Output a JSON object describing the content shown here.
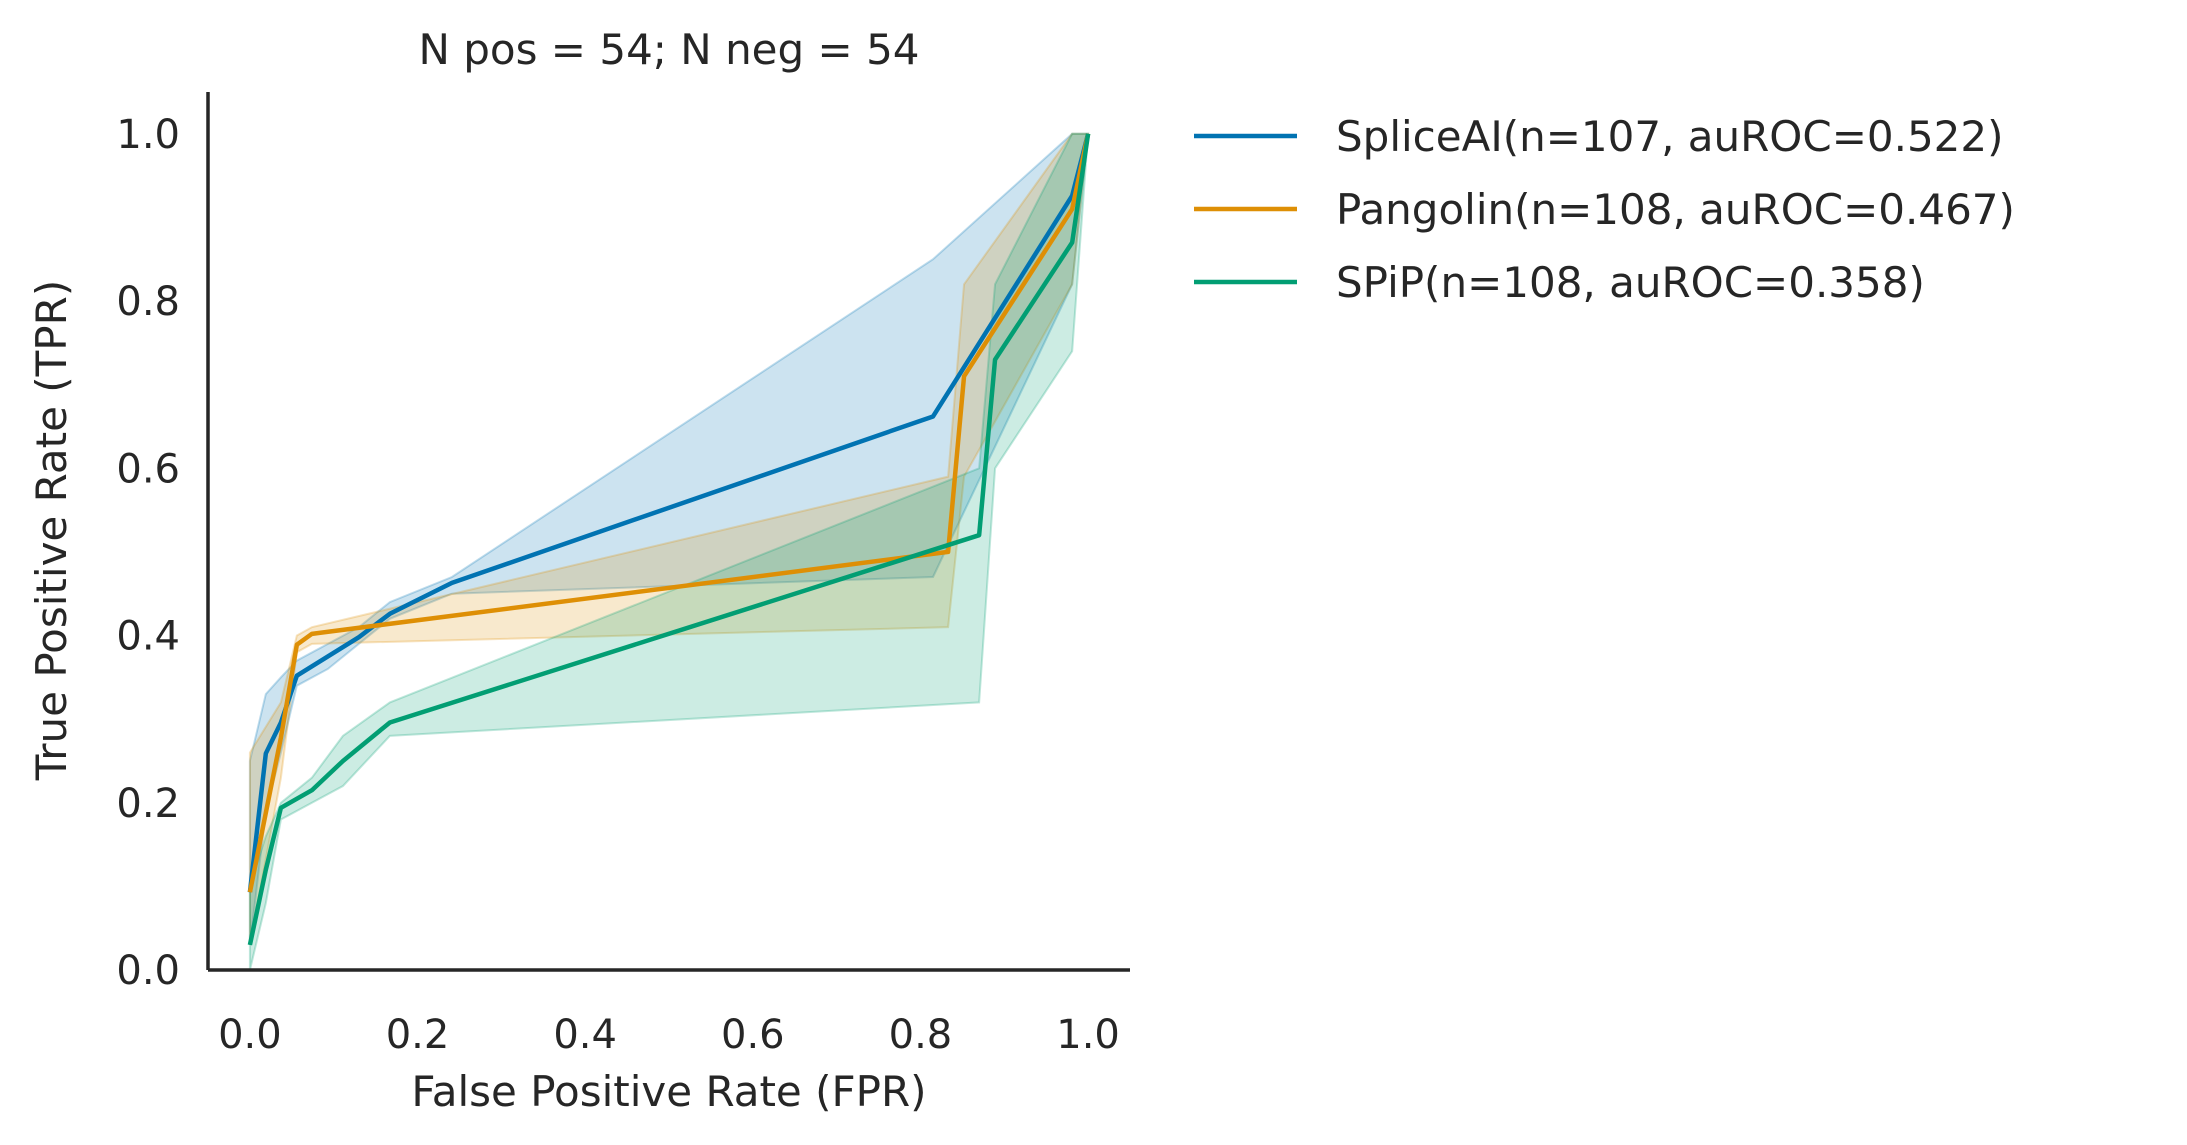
{
  "chart_data": {
    "type": "line",
    "title": "N pos = 54; N neg = 54",
    "xlabel": "False Positive Rate (FPR)",
    "ylabel": "True Positive Rate (TPR)",
    "xlim": [
      -0.05,
      1.05
    ],
    "ylim": [
      0.0,
      1.05
    ],
    "x_ticks": [
      "0.0",
      "0.2",
      "0.4",
      "0.6",
      "0.8",
      "1.0"
    ],
    "y_ticks": [
      "0.0",
      "0.2",
      "0.4",
      "0.6",
      "0.8",
      "1.0"
    ],
    "grid": false,
    "legend_position": "outside-right-top",
    "series": [
      {
        "name": "SpliceAI(n=107, auROC=0.522)",
        "color": "#0173b2",
        "x": [
          0.0,
          0.019,
          0.037,
          0.056,
          0.093,
          0.13,
          0.167,
          0.241,
          0.815,
          0.981,
          1.0
        ],
        "y": [
          0.093,
          0.259,
          0.296,
          0.352,
          0.375,
          0.398,
          0.426,
          0.463,
          0.662,
          0.926,
          1.0
        ],
        "band_upper": [
          0.25,
          0.33,
          0.35,
          0.37,
          0.39,
          0.41,
          0.44,
          0.47,
          0.85,
          1.0,
          1.0
        ],
        "band_lower": [
          0.03,
          0.19,
          0.26,
          0.34,
          0.36,
          0.39,
          0.42,
          0.45,
          0.47,
          0.82,
          1.0
        ]
      },
      {
        "name": "Pangolin(n=108, auROC=0.467)",
        "color": "#de8f05",
        "x": [
          0.0,
          0.037,
          0.056,
          0.074,
          0.833,
          0.852,
          0.981,
          1.0
        ],
        "y": [
          0.093,
          0.278,
          0.389,
          0.402,
          0.5,
          0.71,
          0.91,
          1.0
        ],
        "band_upper": [
          0.26,
          0.32,
          0.4,
          0.41,
          0.59,
          0.82,
          1.0,
          1.0
        ],
        "band_lower": [
          0.03,
          0.23,
          0.38,
          0.39,
          0.41,
          0.59,
          0.82,
          1.0
        ]
      },
      {
        "name": "SPiP(n=108, auROC=0.358)",
        "color": "#029e73",
        "x": [
          0.0,
          0.019,
          0.037,
          0.074,
          0.111,
          0.167,
          0.87,
          0.889,
          0.981,
          1.0
        ],
        "y": [
          0.03,
          0.12,
          0.194,
          0.215,
          0.25,
          0.296,
          0.52,
          0.73,
          0.87,
          1.0
        ],
        "band_upper": [
          0.1,
          0.16,
          0.2,
          0.23,
          0.28,
          0.32,
          0.6,
          0.82,
          1.0,
          1.0
        ],
        "band_lower": [
          0.0,
          0.08,
          0.18,
          0.2,
          0.22,
          0.28,
          0.32,
          0.6,
          0.74,
          1.0
        ]
      }
    ]
  }
}
